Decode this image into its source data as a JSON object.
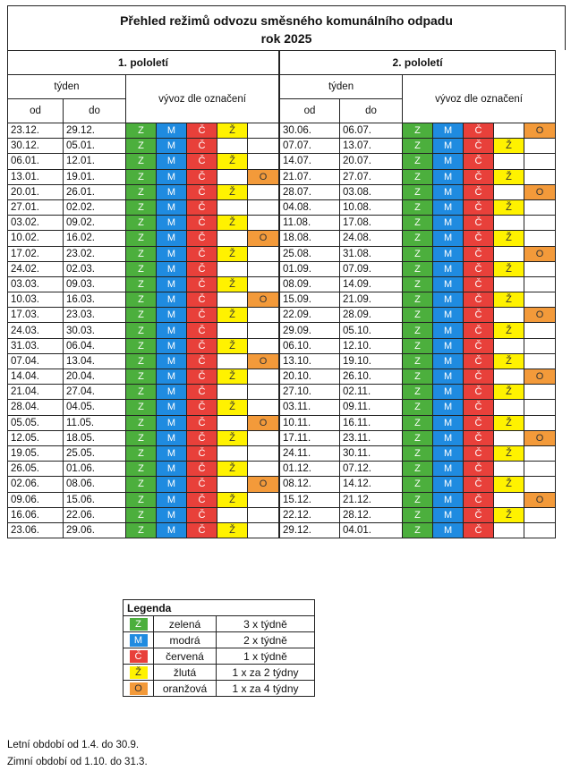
{
  "title_line1": "Přehled režimů odvozu směsného komunálního odpadu",
  "title_line2": "rok 2025",
  "halves": [
    {
      "name": "1. pololetí",
      "rows": [
        [
          "23.12.",
          "29.12.",
          "ZMCZ"
        ],
        [
          "30.12.",
          "05.01.",
          "ZMC"
        ],
        [
          "06.01.",
          "12.01.",
          "ZMCZ"
        ],
        [
          "13.01.",
          "19.01.",
          "ZMCO"
        ],
        [
          "20.01.",
          "26.01.",
          "ZMCZ"
        ],
        [
          "27.01.",
          "02.02.",
          "ZMC"
        ],
        [
          "03.02.",
          "09.02.",
          "ZMCZ"
        ],
        [
          "10.02.",
          "16.02.",
          "ZMCO"
        ],
        [
          "17.02.",
          "23.02.",
          "ZMCZ"
        ],
        [
          "24.02.",
          "02.03.",
          "ZMC"
        ],
        [
          "03.03.",
          "09.03.",
          "ZMCZ"
        ],
        [
          "10.03.",
          "16.03.",
          "ZMCO"
        ],
        [
          "17.03.",
          "23.03.",
          "ZMCZ"
        ],
        [
          "24.03.",
          "30.03.",
          "ZMC"
        ],
        [
          "31.03.",
          "06.04.",
          "ZMCZ"
        ],
        [
          "07.04.",
          "13.04.",
          "ZMCO"
        ],
        [
          "14.04.",
          "20.04.",
          "ZMCZ"
        ],
        [
          "21.04.",
          "27.04.",
          "ZMC"
        ],
        [
          "28.04.",
          "04.05.",
          "ZMCZ"
        ],
        [
          "05.05.",
          "11.05.",
          "ZMCO"
        ],
        [
          "12.05.",
          "18.05.",
          "ZMCZ"
        ],
        [
          "19.05.",
          "25.05.",
          "ZMC"
        ],
        [
          "26.05.",
          "01.06.",
          "ZMCZ"
        ],
        [
          "02.06.",
          "08.06.",
          "ZMCO"
        ],
        [
          "09.06.",
          "15.06.",
          "ZMCZ"
        ],
        [
          "16.06.",
          "22.06.",
          "ZMC"
        ],
        [
          "23.06.",
          "29.06.",
          "ZMCZ"
        ]
      ]
    },
    {
      "name": "2. pololetí",
      "rows": [
        [
          "30.06.",
          "06.07.",
          "ZMCO"
        ],
        [
          "07.07.",
          "13.07.",
          "ZMCZ"
        ],
        [
          "14.07.",
          "20.07.",
          "ZMC"
        ],
        [
          "21.07.",
          "27.07.",
          "ZMCZ"
        ],
        [
          "28.07.",
          "03.08.",
          "ZMCO"
        ],
        [
          "04.08.",
          "10.08.",
          "ZMCZ"
        ],
        [
          "11.08.",
          "17.08.",
          "ZMC"
        ],
        [
          "18.08.",
          "24.08.",
          "ZMCZ"
        ],
        [
          "25.08.",
          "31.08.",
          "ZMCO"
        ],
        [
          "01.09.",
          "07.09.",
          "ZMCZ"
        ],
        [
          "08.09.",
          "14.09.",
          "ZMC"
        ],
        [
          "15.09.",
          "21.09.",
          "ZMCZ"
        ],
        [
          "22.09.",
          "28.09.",
          "ZMCO"
        ],
        [
          "29.09.",
          "05.10.",
          "ZMCZ"
        ],
        [
          "06.10.",
          "12.10.",
          "ZMC"
        ],
        [
          "13.10.",
          "19.10.",
          "ZMCZ"
        ],
        [
          "20.10.",
          "26.10.",
          "ZMCO"
        ],
        [
          "27.10.",
          "02.11.",
          "ZMCZ"
        ],
        [
          "03.11.",
          "09.11.",
          "ZMC"
        ],
        [
          "10.11.",
          "16.11.",
          "ZMCZ"
        ],
        [
          "17.11.",
          "23.11.",
          "ZMCO"
        ],
        [
          "24.11.",
          "30.11.",
          "ZMCZ"
        ],
        [
          "01.12.",
          "07.12.",
          "ZMC"
        ],
        [
          "08.12.",
          "14.12.",
          "ZMCZ"
        ],
        [
          "15.12.",
          "21.12.",
          "ZMCO"
        ],
        [
          "22.12.",
          "28.12.",
          "ZMCZ"
        ],
        [
          "29.12.",
          "04.01.",
          "ZMC"
        ]
      ]
    }
  ],
  "hdr_week": "týden",
  "hdr_from": "od",
  "hdr_to": "do",
  "hdr_pickup": "vývoz dle označení",
  "symbols": {
    "Z": "Z",
    "M": "M",
    "C": "Č",
    "Zl": "Ž",
    "O": "O"
  },
  "colors": {
    "green": "#4caf3d",
    "blue": "#1f8be0",
    "red": "#e8403a",
    "yellow": "#fff200",
    "orange": "#f39a3a"
  },
  "legend": {
    "title": "Legenda",
    "items": [
      {
        "sym": "Z",
        "cls": "cZ",
        "name": "zelená",
        "freq": "3 x týdně"
      },
      {
        "sym": "M",
        "cls": "cM",
        "name": "modrá",
        "freq": "2 x týdně"
      },
      {
        "sym": "Č",
        "cls": "cC",
        "name": "červená",
        "freq": "1 x týdně"
      },
      {
        "sym": "Ž",
        "cls": "cZl",
        "name": "žlutá",
        "freq": "1 x za 2 týdny"
      },
      {
        "sym": "O",
        "cls": "cO",
        "name": "oranžová",
        "freq": "1 x za 4 týdny"
      }
    ]
  },
  "notes": [
    "Letní období od 1.4. do 30.9.",
    "Zimní období od 1.10. do 31.3."
  ]
}
